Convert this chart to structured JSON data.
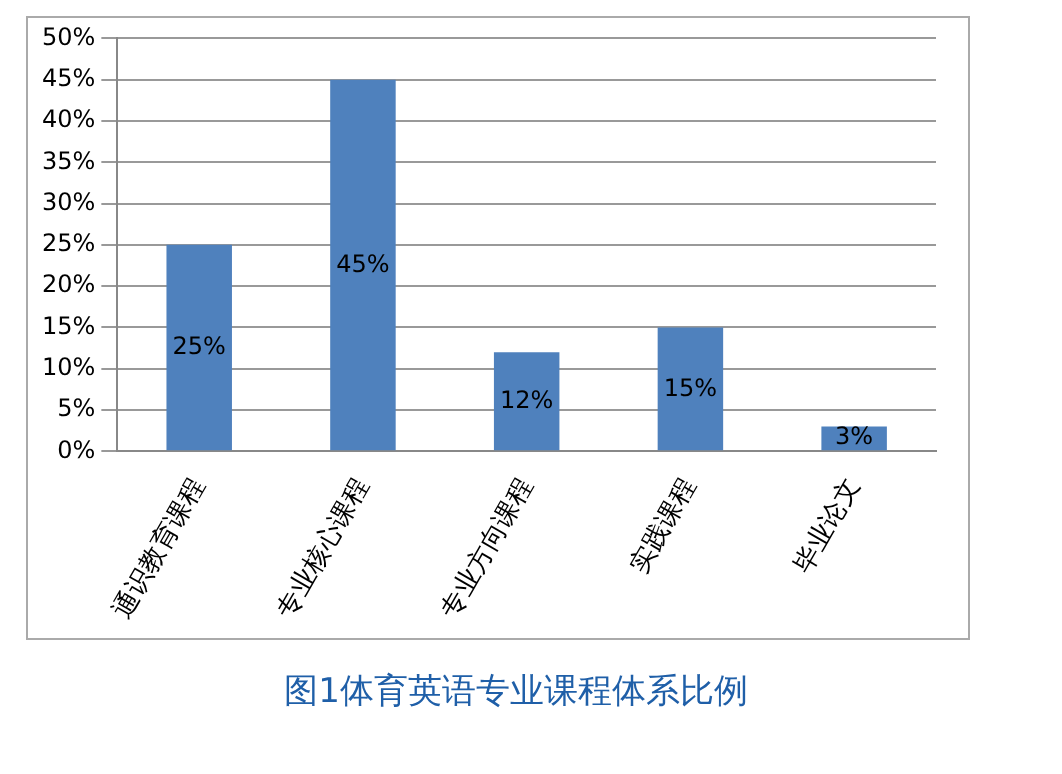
{
  "chart_data": {
    "type": "bar",
    "title": "图1体育英语专业课程体系比例",
    "categories": [
      "通识教育课程",
      "专业核心课程",
      "专业方向课程",
      "实践课程",
      "毕业论文"
    ],
    "values": [
      25,
      45,
      12,
      15,
      3
    ],
    "value_labels": [
      "25%",
      "45%",
      "12%",
      "15%",
      "3%"
    ],
    "color": "#4f81bd",
    "ylim": [
      0,
      50
    ],
    "yticks": [
      {
        "value": 0,
        "label": "0%"
      },
      {
        "value": 5,
        "label": "5%"
      },
      {
        "value": 10,
        "label": "10%"
      },
      {
        "value": 15,
        "label": "15%"
      },
      {
        "value": 20,
        "label": "20%"
      },
      {
        "value": 25,
        "label": "25%"
      },
      {
        "value": 30,
        "label": "30%"
      },
      {
        "value": 35,
        "label": "35%"
      },
      {
        "value": 40,
        "label": "40%"
      },
      {
        "value": 45,
        "label": "45%"
      },
      {
        "value": 50,
        "label": "50%"
      }
    ],
    "grid": "y",
    "legend": false
  }
}
